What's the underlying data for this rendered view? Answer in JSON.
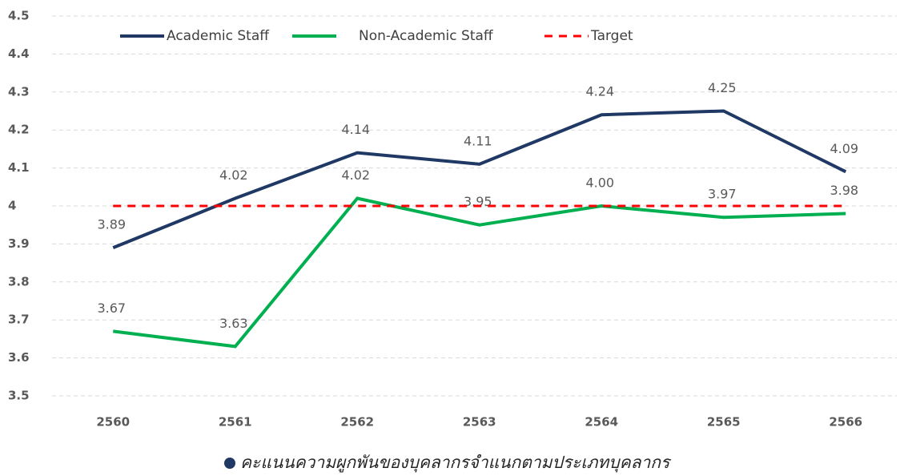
{
  "chart_data": {
    "type": "line",
    "caption": "คะแนนความผูกพันของบุคลากรจำแนกตามประเภทบุคลากร",
    "categories": [
      "2560",
      "2561",
      "2562",
      "2563",
      "2564",
      "2565",
      "2566"
    ],
    "series": [
      {
        "name": "Academic Staff",
        "color": "#1f3864",
        "values": [
          3.89,
          4.02,
          4.14,
          4.11,
          4.24,
          4.25,
          4.09
        ]
      },
      {
        "name": "Non-Academic Staff",
        "color": "#00b050",
        "values": [
          3.67,
          3.63,
          4.02,
          3.95,
          4,
          3.97,
          3.98
        ],
        "value_labels": [
          "3.67",
          "3.63",
          "4.02",
          "3.95",
          "4.00",
          "3.97",
          "3.98"
        ]
      },
      {
        "name": "Target",
        "color": "#ff0000",
        "dashed": true,
        "values": [
          4,
          4,
          4,
          4,
          4,
          4,
          4
        ]
      }
    ],
    "ylim": [
      3.5,
      4.5
    ],
    "yticks": [
      3.5,
      3.6,
      3.7,
      3.8,
      3.9,
      4,
      4.1,
      4.2,
      4.3,
      4.4,
      4.5
    ],
    "grid": true
  }
}
